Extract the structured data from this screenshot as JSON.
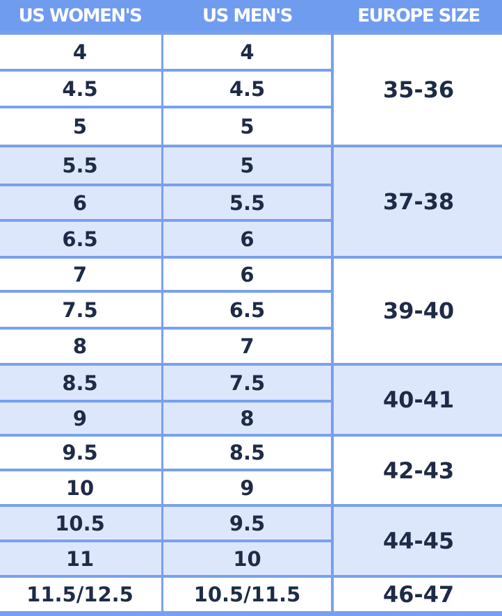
{
  "headers": [
    "US WOMEN'S",
    "US MEN'S",
    "EUROPE SIZE"
  ],
  "groups": [
    {
      "europe": "35-36",
      "rows": [
        [
          "4",
          "4"
        ],
        [
          "4.5",
          "4.5"
        ],
        [
          "5",
          "5"
        ]
      ]
    },
    {
      "europe": "37-38",
      "rows": [
        [
          "5.5",
          "5"
        ],
        [
          "6",
          "5.5"
        ],
        [
          "6.5",
          "6"
        ]
      ]
    },
    {
      "europe": "39-40",
      "rows": [
        [
          "7",
          "6"
        ],
        [
          "7.5",
          "6.5"
        ],
        [
          "8",
          "7"
        ]
      ]
    },
    {
      "europe": "40-41",
      "rows": [
        [
          "8.5",
          "7.5"
        ],
        [
          "9",
          "8"
        ]
      ]
    },
    {
      "europe": "42-43",
      "rows": [
        [
          "9.5",
          "8.5"
        ],
        [
          "10",
          "9"
        ]
      ]
    },
    {
      "europe": "44-45",
      "rows": [
        [
          "10.5",
          "9.5"
        ],
        [
          "11",
          "10"
        ]
      ]
    },
    {
      "europe": "46-47",
      "rows": [
        [
          "11.5/12.5",
          "10.5/11.5"
        ]
      ]
    }
  ],
  "colors": {
    "header": "#709cf0",
    "border": "#78a0ef",
    "shaded": "#dde7fb",
    "text": "#1e2b47"
  }
}
